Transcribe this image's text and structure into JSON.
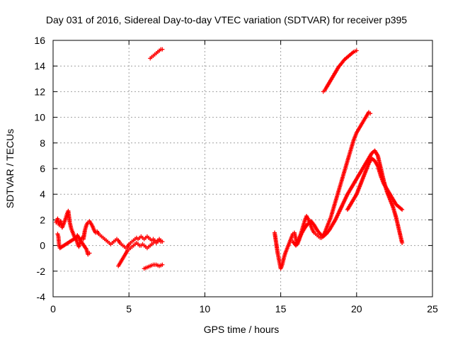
{
  "chart_data": {
    "type": "scatter",
    "title": "Day 031 of 2016, Sidereal Day-to-day VTEC variation (SDTVAR) for receiver p395",
    "xlabel": "GPS time / hours",
    "ylabel": "SDTVAR / TECUs",
    "xlim": [
      0,
      25
    ],
    "ylim": [
      -4,
      16
    ],
    "xticks": [
      0,
      5,
      10,
      15,
      20,
      25
    ],
    "yticks": [
      -4,
      -2,
      0,
      2,
      4,
      6,
      8,
      10,
      12,
      14,
      16
    ],
    "grid": true,
    "marker": "plus",
    "colors": {
      "series": "#ff0000",
      "grid": "#a0a0a0",
      "axes": "#000000"
    },
    "series": [
      {
        "x": [
          0.2,
          0.3,
          0.4,
          0.5,
          0.6,
          0.7,
          0.8,
          0.9,
          1.0,
          1.1,
          1.2,
          1.3,
          1.4,
          1.5,
          1.6,
          1.7,
          1.8,
          1.9,
          2.0,
          2.1,
          2.2,
          2.3,
          2.4,
          2.5,
          2.6,
          2.7,
          2.8,
          2.9,
          3.0,
          3.1,
          3.2,
          3.3,
          3.4,
          3.5,
          3.6,
          3.7,
          3.8,
          3.9,
          4.0,
          4.1,
          4.2,
          4.3,
          4.4,
          4.5,
          4.6,
          4.7,
          4.8,
          4.9,
          5.0,
          5.1,
          5.2,
          5.3,
          5.4,
          5.5,
          5.6,
          5.7,
          5.8,
          5.9,
          6.0,
          6.1,
          6.2,
          6.3,
          6.4,
          6.5,
          6.6,
          6.7,
          6.8,
          6.9,
          7.0,
          7.1,
          7.2
        ],
        "y": [
          1.8,
          2.1,
          1.6,
          1.9,
          1.4,
          1.7,
          2.0,
          2.4,
          2.7,
          1.8,
          1.3,
          1.0,
          0.7,
          0.5,
          0.8,
          0.6,
          0.4,
          0.6,
          0.5,
          1.2,
          1.6,
          1.8,
          1.9,
          1.7,
          1.5,
          1.2,
          1.0,
          1.1,
          0.9,
          0.8,
          0.7,
          0.6,
          0.5,
          0.4,
          0.3,
          0.2,
          0.1,
          0.2,
          0.3,
          0.4,
          0.5,
          0.4,
          0.2,
          0.1,
          0.0,
          -0.1,
          -0.2,
          -0.1,
          0.1,
          0.2,
          0.3,
          0.4,
          0.5,
          0.6,
          0.5,
          0.6,
          0.7,
          0.6,
          0.5,
          0.6,
          0.7,
          0.6,
          0.5,
          0.4,
          0.5,
          0.4,
          0.3,
          0.4,
          0.5,
          0.4,
          0.3
        ]
      },
      {
        "x": [
          0.3,
          0.35,
          0.4,
          0.45,
          1.5,
          1.6,
          1.7,
          1.8,
          2.2,
          2.3,
          2.4
        ],
        "y": [
          0.9,
          0.7,
          0.0,
          -0.2,
          0.6,
          0.2,
          -0.1,
          0.4,
          -0.3,
          -0.7,
          -0.6
        ]
      },
      {
        "x": [
          4.3,
          4.4,
          4.5,
          4.6,
          4.7,
          4.8,
          4.9,
          5.0,
          5.1,
          5.2,
          5.3,
          5.4,
          5.5,
          5.6,
          5.7,
          5.8,
          5.9,
          6.0,
          6.1,
          6.2,
          6.3,
          6.4,
          6.5,
          6.6,
          6.7,
          6.8,
          6.9,
          7.0,
          7.1
        ],
        "y": [
          -1.6,
          -1.4,
          -1.2,
          -1.0,
          -0.8,
          -0.6,
          -0.4,
          -0.3,
          -0.2,
          -0.1,
          0.0,
          0.1,
          0.2,
          0.1,
          0.0,
          0.0,
          0.1,
          0.0,
          -0.1,
          -0.2,
          -0.1,
          0.0,
          0.1,
          0.2,
          0.3,
          0.2,
          0.3,
          0.4,
          0.3
        ]
      },
      {
        "x": [
          6.0,
          6.2,
          6.4,
          6.6,
          6.8,
          7.0,
          7.2
        ],
        "y": [
          -1.8,
          -1.7,
          -1.6,
          -1.5,
          -1.5,
          -1.6,
          -1.5
        ]
      },
      {
        "x": [
          6.4,
          6.5,
          6.6,
          6.7,
          6.8,
          6.9,
          7.0,
          7.1,
          7.2
        ],
        "y": [
          14.6,
          14.7,
          14.8,
          14.9,
          15.0,
          15.1,
          15.2,
          15.3,
          15.3
        ]
      },
      {
        "x": [
          14.6,
          14.7,
          14.8,
          14.9,
          15.0,
          15.1,
          15.2,
          15.3,
          15.4,
          15.5,
          15.6,
          15.7,
          15.8,
          15.9,
          16.0,
          16.1,
          16.2,
          16.3,
          16.4,
          16.5,
          16.6,
          16.7,
          16.8,
          16.9,
          17.0,
          17.1,
          17.2,
          17.3,
          17.4,
          17.5,
          17.6,
          17.7,
          17.8,
          17.9,
          18.0,
          18.1,
          18.2,
          18.3,
          18.4,
          18.5,
          18.6,
          18.7,
          18.8,
          18.9,
          19.0,
          19.1,
          19.2,
          19.3,
          19.4,
          19.5,
          19.6,
          19.7,
          19.8,
          19.9,
          20.0,
          20.1,
          20.2,
          20.3,
          20.4,
          20.5,
          20.6,
          20.7,
          20.8,
          20.9
        ],
        "y": [
          1.0,
          0.2,
          -0.6,
          -1.2,
          -1.8,
          -1.5,
          -1.0,
          -0.6,
          -0.3,
          0.0,
          0.3,
          0.6,
          0.9,
          1.0,
          0.5,
          0.1,
          0.4,
          0.8,
          1.2,
          1.6,
          2.0,
          2.3,
          2.1,
          1.8,
          1.5,
          1.2,
          1.0,
          0.9,
          0.8,
          0.7,
          0.6,
          0.6,
          0.8,
          1.0,
          1.3,
          1.6,
          1.9,
          2.2,
          2.6,
          3.0,
          3.4,
          3.8,
          4.2,
          4.6,
          5.0,
          5.4,
          5.8,
          6.2,
          6.6,
          7.0,
          7.4,
          7.8,
          8.2,
          8.5,
          8.8,
          9.0,
          9.2,
          9.4,
          9.6,
          9.8,
          10.0,
          10.2,
          10.4,
          10.3
        ]
      },
      {
        "x": [
          15.8,
          16.0,
          16.2,
          16.4,
          16.6,
          16.8,
          17.0,
          17.2,
          17.4,
          17.6,
          17.8,
          18.0,
          18.2,
          18.4,
          18.6,
          18.8,
          19.0,
          19.2,
          19.4,
          19.6,
          19.8,
          20.0,
          20.2,
          20.4,
          20.6,
          20.8,
          21.0,
          21.2,
          21.4,
          21.6,
          21.8,
          22.0,
          22.2,
          22.4,
          22.6,
          22.8,
          23.0
        ],
        "y": [
          0.3,
          0.0,
          0.5,
          1.0,
          1.4,
          1.7,
          1.9,
          1.6,
          1.2,
          0.9,
          0.7,
          0.9,
          1.2,
          1.6,
          2.0,
          2.5,
          3.0,
          3.5,
          4.0,
          4.4,
          4.8,
          5.2,
          5.6,
          6.0,
          6.4,
          6.8,
          7.2,
          7.4,
          7.0,
          6.0,
          5.0,
          4.2,
          3.6,
          3.0,
          2.2,
          1.2,
          0.2
        ]
      },
      {
        "x": [
          19.4,
          19.6,
          19.8,
          20.0,
          20.2,
          20.4,
          20.6,
          20.8,
          21.0,
          21.2,
          21.4,
          21.6,
          21.8,
          22.0,
          22.2,
          22.4,
          22.6,
          22.8,
          23.0
        ],
        "y": [
          2.8,
          3.2,
          3.6,
          4.0,
          4.6,
          5.2,
          5.8,
          6.4,
          6.8,
          6.6,
          6.2,
          5.4,
          4.8,
          4.4,
          4.0,
          3.6,
          3.2,
          3.0,
          2.8
        ]
      },
      {
        "x": [
          17.8,
          17.9,
          18.0,
          18.2,
          18.4,
          18.6,
          18.8,
          19.0,
          19.2,
          19.4,
          19.6,
          19.8,
          20.0
        ],
        "y": [
          12.0,
          12.1,
          12.3,
          12.7,
          13.1,
          13.5,
          13.9,
          14.2,
          14.5,
          14.7,
          14.9,
          15.1,
          15.2
        ]
      }
    ]
  }
}
